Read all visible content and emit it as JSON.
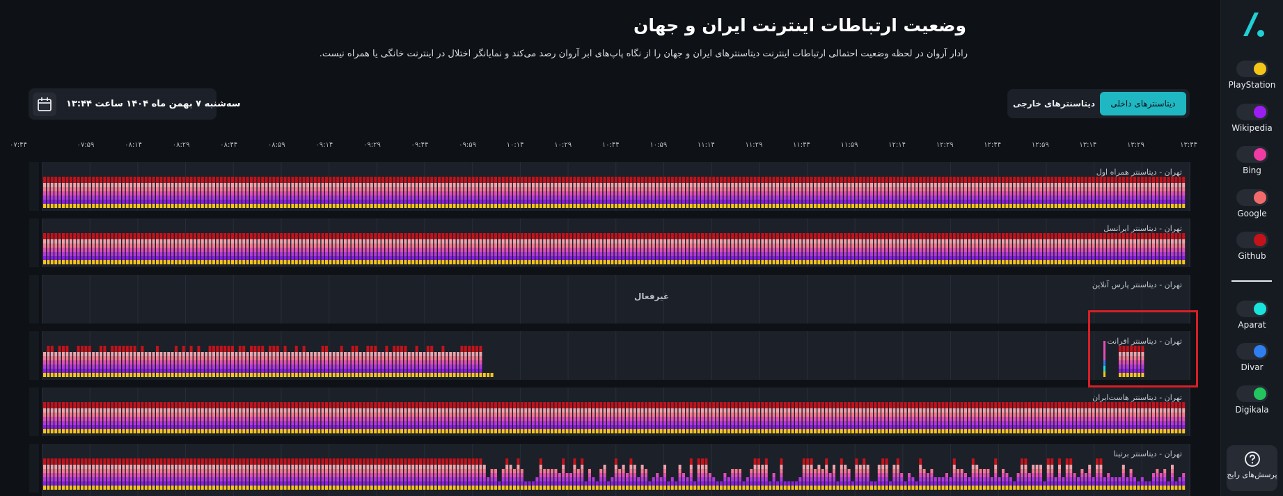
{
  "header": {
    "title": "وضعیت ارتباطات اینترنت ایران و جهان",
    "subtitle": "رادار آروان در لحظه وضعیت احتمالی ارتباطات اینترنت دیتاسنترهای ایران و جهان را از نگاه پاپ‌های ابر آروان رصد می‌کند و نمایانگر اختلال در اینترنت خانگی یا همراه نیست."
  },
  "tabs": {
    "domestic": "دیتاسنترهای داخلی",
    "foreign": "دیتاسنترهای خارجی"
  },
  "date": {
    "label": "سه‌شنبه ۷ بهمن ماه ۱۴۰۴ ساعت ۱۳:۴۴"
  },
  "sidebar": {
    "logo": "arvan-logo",
    "services_primary": [
      {
        "label": "PlayStation",
        "color": "#f5c518"
      },
      {
        "label": "Wikipedia",
        "color": "#9b1ff0"
      },
      {
        "label": "Bing",
        "color": "#f03aa4"
      },
      {
        "label": "Google",
        "color": "#f26b6b"
      },
      {
        "label": "Github",
        "color": "#c4121a"
      }
    ],
    "services_secondary": [
      {
        "label": "Aparat",
        "color": "#19e3dd"
      },
      {
        "label": "Divar",
        "color": "#2f7ff0"
      },
      {
        "label": "Digikala",
        "color": "#22c55e"
      }
    ],
    "faq_label": "پرسش‌های رایج",
    "faq_icon": "question-circle-icon"
  },
  "time_axis": [
    "۰۷:۴۴",
    "۰۷:۵۹",
    "۰۸:۱۴",
    "۰۸:۲۹",
    "۰۸:۴۴",
    "۰۸:۵۹",
    "۰۹:۱۴",
    "۰۹:۲۹",
    "۰۹:۴۴",
    "۰۹:۵۹",
    "۱۰:۱۴",
    "۱۰:۲۹",
    "۱۰:۴۴",
    "۱۰:۵۹",
    "۱۱:۱۴",
    "۱۱:۲۹",
    "۱۱:۴۴",
    "۱۱:۵۹",
    "۱۲:۱۴",
    "۱۲:۲۹",
    "۱۲:۴۴",
    "۱۲:۵۹",
    "۱۳:۱۴",
    "۱۳:۲۹",
    "۱۳:۴۴"
  ],
  "datacenters": [
    {
      "title": "تهران - دیتاسنتر همراه اول",
      "state": "full"
    },
    {
      "title": "تهران - دیتاسنتر ایرانسل",
      "state": "full"
    },
    {
      "title": "تهران - دیتاسنتر پارس آنلاین",
      "state": "inactive",
      "status": "غیرفعال"
    },
    {
      "title": "تهران - دیتاسنتر افرانت",
      "state": "partial"
    },
    {
      "title": "تهران - دیتاسنتر هاست‌ایران",
      "state": "full"
    },
    {
      "title": "تهران - دیتاسنتر برتینا",
      "state": "degraded"
    }
  ],
  "colors": {
    "accent": "#1fb7c2",
    "highlight": "#d81f26",
    "stack": [
      "#f5c518",
      "#8a1fe0",
      "#b13ad8",
      "#e14fb5",
      "#f27a8e",
      "#e9a4ae",
      "#c4121a"
    ]
  }
}
